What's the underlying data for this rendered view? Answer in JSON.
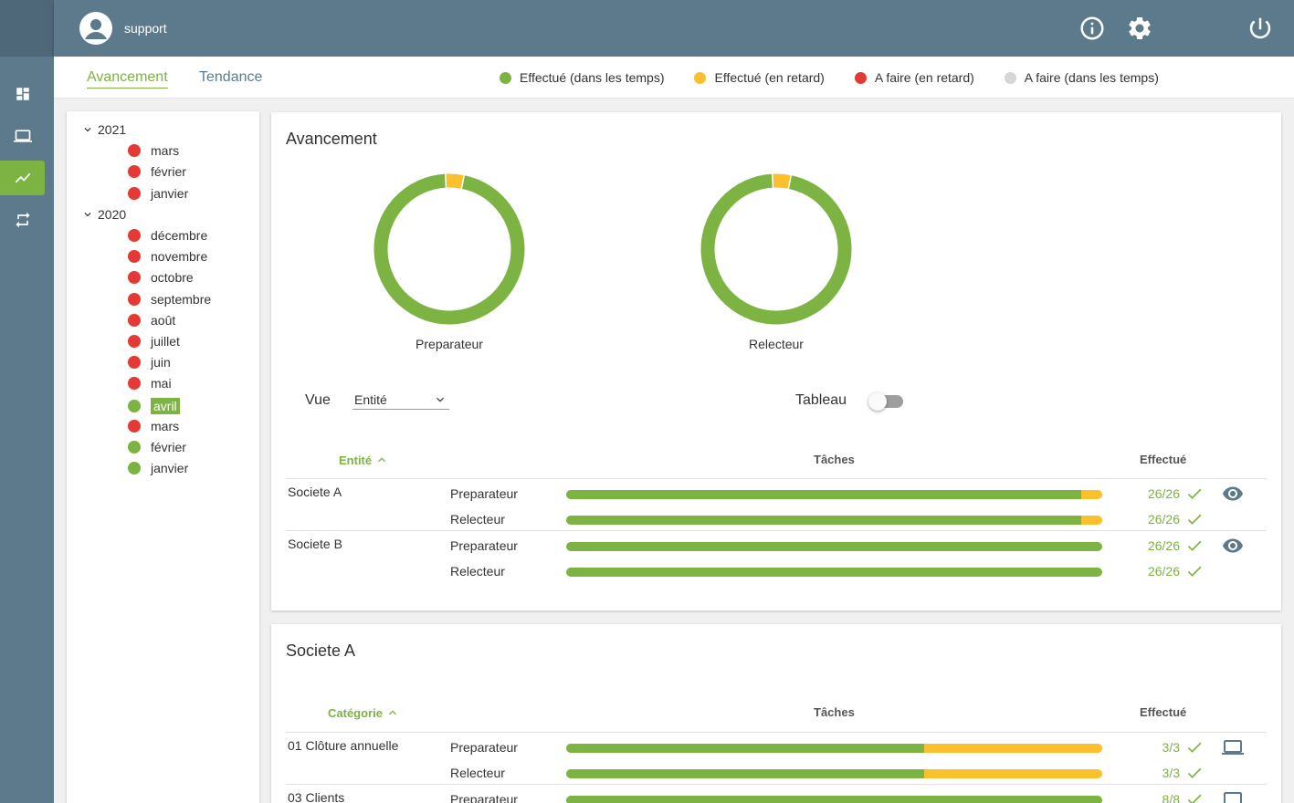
{
  "user": {
    "name": "support"
  },
  "tabs": [
    {
      "label": "Avancement"
    },
    {
      "label": "Tendance"
    }
  ],
  "legend": [
    {
      "label": "Effectué (dans les temps)",
      "color": "#7cb342"
    },
    {
      "label": "Effectué (en retard)",
      "color": "#fbc02d"
    },
    {
      "label": "A faire (en retard)",
      "color": "#e53935"
    },
    {
      "label": "A faire (dans les temps)",
      "color": "#d6d6d6"
    }
  ],
  "tree": [
    {
      "year": "2021",
      "months": [
        {
          "label": "mars",
          "status": "red"
        },
        {
          "label": "février",
          "status": "red"
        },
        {
          "label": "janvier",
          "status": "red"
        }
      ]
    },
    {
      "year": "2020",
      "months": [
        {
          "label": "décembre",
          "status": "red"
        },
        {
          "label": "novembre",
          "status": "red"
        },
        {
          "label": "octobre",
          "status": "red"
        },
        {
          "label": "septembre",
          "status": "red"
        },
        {
          "label": "août",
          "status": "red"
        },
        {
          "label": "juillet",
          "status": "red"
        },
        {
          "label": "juin",
          "status": "red"
        },
        {
          "label": "mai",
          "status": "red"
        },
        {
          "label": "avril",
          "status": "green",
          "selected": true
        },
        {
          "label": "mars",
          "status": "red"
        },
        {
          "label": "février",
          "status": "green"
        },
        {
          "label": "janvier",
          "status": "green"
        }
      ]
    }
  ],
  "avancement": {
    "title": "Avancement",
    "donuts": [
      {
        "label": "Preparateur",
        "ontime_fraction": 0.96,
        "late_fraction": 0.04
      },
      {
        "label": "Relecteur",
        "ontime_fraction": 0.96,
        "late_fraction": 0.04
      }
    ],
    "vue_label": "Vue",
    "vue_value": "Entité",
    "tableau_label": "Tableau",
    "tableau_on": false,
    "headers": {
      "entity": "Entité",
      "tasks": "Tâches",
      "done": "Effectué"
    },
    "rows": [
      {
        "name": "Societe A",
        "roles": [
          {
            "role": "Preparateur",
            "green": 0.96,
            "yellow": 0.04,
            "done": "26/26"
          },
          {
            "role": "Relecteur",
            "green": 0.96,
            "yellow": 0.04,
            "done": "26/26"
          }
        ]
      },
      {
        "name": "Societe B",
        "roles": [
          {
            "role": "Preparateur",
            "green": 1,
            "yellow": 0,
            "done": "26/26"
          },
          {
            "role": "Relecteur",
            "green": 1,
            "yellow": 0,
            "done": "26/26"
          }
        ]
      }
    ]
  },
  "societe": {
    "title": "Societe A",
    "headers": {
      "category": "Catégorie",
      "tasks": "Tâches",
      "done": "Effectué"
    },
    "rows": [
      {
        "name": "01 Clôture annuelle",
        "roles": [
          {
            "role": "Preparateur",
            "green": 0.667,
            "yellow": 0.333,
            "done": "3/3"
          },
          {
            "role": "Relecteur",
            "green": 0.667,
            "yellow": 0.333,
            "done": "3/3"
          }
        ]
      },
      {
        "name": "03 Clients",
        "roles": [
          {
            "role": "Preparateur",
            "green": 1,
            "yellow": 0,
            "done": "8/8"
          }
        ]
      }
    ]
  }
}
